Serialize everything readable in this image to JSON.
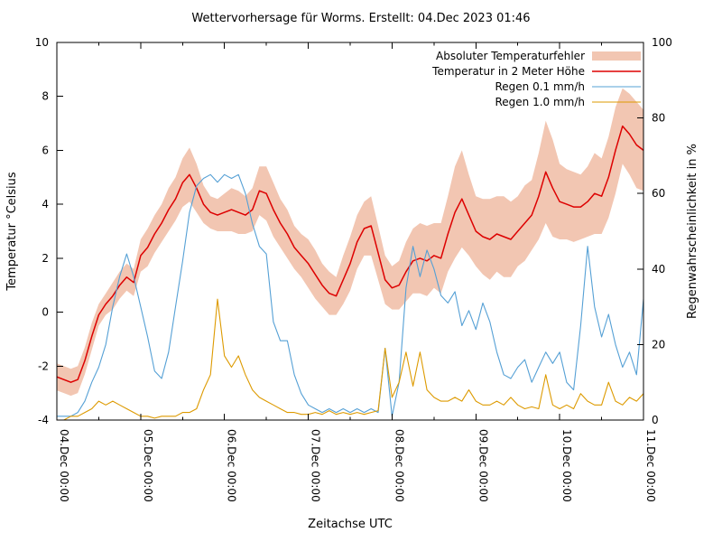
{
  "chart_data": {
    "type": "line",
    "title": "Wettervorhersage für Worms. Erstellt: 04.Dec 2023 01:46",
    "xlabel": "Zeitachse UTC",
    "ylabel_left": "Temperatur °Celsius",
    "ylabel_right": "Regenwahrscheinlichkeit in %",
    "x_unit": "hours since 04.Dec 00:00 UTC",
    "x_range_hours": [
      0,
      168
    ],
    "ylim_left": [
      -4,
      10
    ],
    "ylim_right": [
      0,
      100
    ],
    "grid": false,
    "legend_position": "top-right-inside",
    "x_tick_hours": [
      0,
      24,
      48,
      72,
      96,
      120,
      144,
      168
    ],
    "x_tick_labels": [
      "04.Dec 00:00",
      "05.Dec 00:00",
      "06.Dec 00:00",
      "07.Dec 00:00",
      "08.Dec 00:00",
      "09.Dec 00:00",
      "10.Dec 00:00",
      "11.Dec 00:00"
    ],
    "y_ticks_left": [
      -4,
      -2,
      0,
      2,
      4,
      6,
      8,
      10
    ],
    "y_ticks_right": [
      0,
      20,
      40,
      60,
      80,
      100
    ],
    "colors": {
      "band": "#f2c6b2",
      "temperature": "#dd0000",
      "rain01": "#55a0d5",
      "rain10": "#dd9a00",
      "axis": "#000000"
    },
    "legend": [
      {
        "label": "Absoluter Temperaturfehler",
        "swatch": "band",
        "color_key": "band"
      },
      {
        "label": "Temperatur in 2 Meter Höhe",
        "swatch": "line",
        "color_key": "temperature"
      },
      {
        "label": "Regen 0.1 mm/h",
        "swatch": "line",
        "color_key": "rain01"
      },
      {
        "label": "Regen 1.0 mm/h",
        "swatch": "line",
        "color_key": "rain10"
      }
    ],
    "hours": [
      0,
      2,
      4,
      6,
      8,
      10,
      12,
      14,
      16,
      18,
      20,
      22,
      24,
      26,
      28,
      30,
      32,
      34,
      36,
      38,
      40,
      42,
      44,
      46,
      48,
      50,
      52,
      54,
      56,
      58,
      60,
      62,
      64,
      66,
      68,
      70,
      72,
      74,
      76,
      78,
      80,
      82,
      84,
      86,
      88,
      90,
      92,
      94,
      96,
      98,
      100,
      102,
      104,
      106,
      108,
      110,
      112,
      114,
      116,
      118,
      120,
      122,
      124,
      126,
      128,
      130,
      132,
      134,
      136,
      138,
      140,
      142,
      144,
      146,
      148,
      150,
      152,
      154,
      156,
      158,
      160,
      162,
      164,
      166,
      168
    ],
    "series": {
      "temperature_2m": {
        "name": "Temperatur in 2 Meter Höhe",
        "unit": "°C",
        "axis": "left",
        "values": [
          -2.4,
          -2.5,
          -2.6,
          -2.5,
          -1.8,
          -0.9,
          -0.1,
          0.3,
          0.6,
          1.0,
          1.3,
          1.1,
          2.1,
          2.4,
          2.9,
          3.3,
          3.8,
          4.2,
          4.8,
          5.1,
          4.6,
          4.0,
          3.7,
          3.6,
          3.7,
          3.8,
          3.7,
          3.6,
          3.8,
          4.5,
          4.4,
          3.8,
          3.3,
          2.9,
          2.4,
          2.1,
          1.8,
          1.4,
          1.0,
          0.7,
          0.6,
          1.2,
          1.8,
          2.6,
          3.1,
          3.2,
          2.2,
          1.2,
          0.9,
          1.0,
          1.5,
          1.9,
          2.0,
          1.9,
          2.1,
          2.0,
          2.9,
          3.7,
          4.2,
          3.6,
          3.0,
          2.8,
          2.7,
          2.9,
          2.8,
          2.7,
          3.0,
          3.3,
          3.6,
          4.3,
          5.2,
          4.6,
          4.1,
          4.0,
          3.9,
          3.9,
          4.1,
          4.4,
          4.3,
          5.0,
          6.0,
          6.9,
          6.6,
          6.2,
          6.0
        ]
      },
      "temperature_error": {
        "name": "Absoluter Temperaturfehler",
        "unit": "°C",
        "axis": "left",
        "halfwidth": [
          0.5,
          0.5,
          0.5,
          0.5,
          0.5,
          0.5,
          0.4,
          0.4,
          0.5,
          0.5,
          0.5,
          0.5,
          0.6,
          0.7,
          0.7,
          0.7,
          0.8,
          0.8,
          0.9,
          1.0,
          0.9,
          0.7,
          0.6,
          0.6,
          0.7,
          0.8,
          0.8,
          0.7,
          0.8,
          0.9,
          1.0,
          1.0,
          0.9,
          0.9,
          0.8,
          0.8,
          0.9,
          0.9,
          0.8,
          0.8,
          0.7,
          0.9,
          1.0,
          1.0,
          1.0,
          1.1,
          1.0,
          0.9,
          0.8,
          0.9,
          1.1,
          1.2,
          1.3,
          1.3,
          1.2,
          1.3,
          1.4,
          1.7,
          1.8,
          1.5,
          1.3,
          1.4,
          1.5,
          1.4,
          1.5,
          1.4,
          1.3,
          1.4,
          1.3,
          1.6,
          1.9,
          1.8,
          1.4,
          1.3,
          1.3,
          1.2,
          1.3,
          1.5,
          1.4,
          1.5,
          1.6,
          1.4,
          1.5,
          1.6,
          1.5
        ]
      },
      "rain_probability_0_1mm": {
        "name": "Regen 0.1 mm/h",
        "unit": "%",
        "axis": "right",
        "values": [
          1,
          1,
          1,
          2,
          5,
          10,
          14,
          20,
          30,
          38,
          44,
          38,
          30,
          22,
          13,
          11,
          18,
          30,
          42,
          55,
          62,
          64,
          65,
          63,
          65,
          64,
          65,
          60,
          52,
          46,
          44,
          26,
          21,
          21,
          12,
          7,
          4,
          3,
          2,
          3,
          2,
          3,
          2,
          3,
          2,
          3,
          2,
          19,
          1,
          10,
          35,
          46,
          38,
          45,
          40,
          33,
          31,
          34,
          25,
          29,
          24,
          31,
          26,
          18,
          12,
          11,
          14,
          16,
          10,
          14,
          18,
          15,
          18,
          10,
          8,
          25,
          46,
          30,
          22,
          28,
          20,
          14,
          18,
          12,
          32
        ]
      },
      "rain_probability_1_0mm": {
        "name": "Regen 1.0 mm/h",
        "unit": "%",
        "axis": "right",
        "values": [
          0,
          0,
          1,
          1,
          2,
          3,
          5,
          4,
          5,
          4,
          3,
          2,
          1,
          1,
          0.5,
          1,
          1,
          1,
          2,
          2,
          3,
          8,
          12,
          32,
          17,
          14,
          17,
          12,
          8,
          6,
          5,
          4,
          3,
          2,
          2,
          1.5,
          1.5,
          2,
          1.5,
          2.5,
          1.5,
          2,
          1.5,
          2,
          1.5,
          2,
          2.5,
          19,
          6,
          10,
          18,
          9,
          18,
          8,
          6,
          5,
          5,
          6,
          5,
          8,
          5,
          4,
          4,
          5,
          4,
          6,
          4,
          3,
          3.5,
          3,
          12,
          4,
          3,
          4,
          3,
          7,
          5,
          4,
          4,
          10,
          5,
          4,
          6,
          5,
          7
        ]
      }
    }
  }
}
